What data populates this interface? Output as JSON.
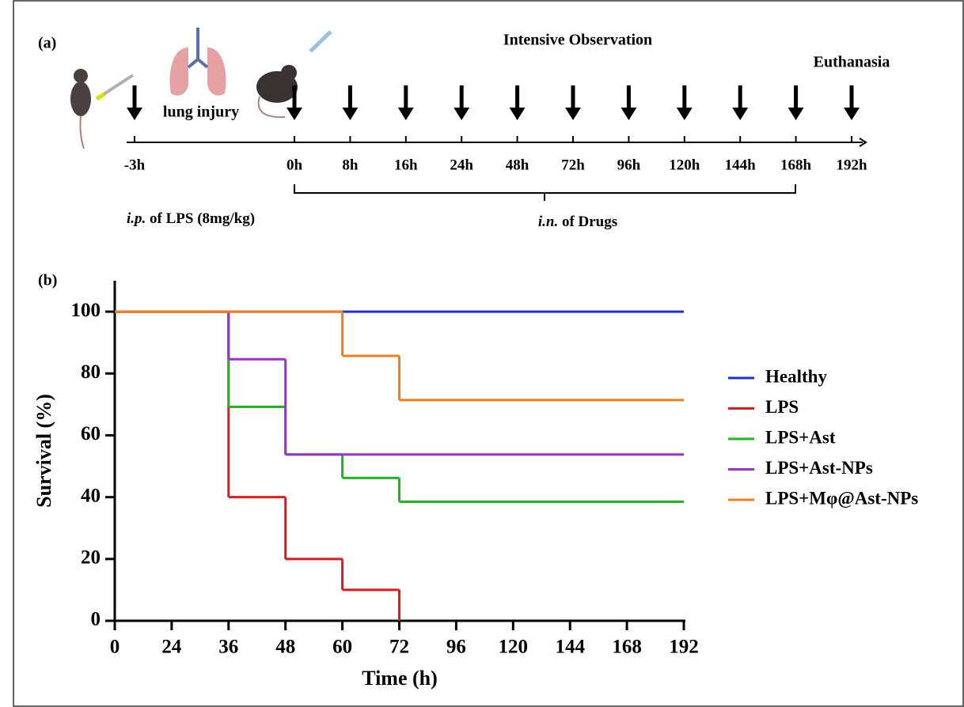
{
  "panel_a": {
    "label": "(a)",
    "header": "Intensive Observation",
    "end_label": "Euthanasia",
    "injury_label": "lung injury",
    "timepoints": [
      "-3h",
      "0h",
      "8h",
      "16h",
      "24h",
      "48h",
      "72h",
      "96h",
      "120h",
      "144h",
      "168h",
      "192h"
    ],
    "ip_prefix": "i.p.",
    "ip_text": "of LPS (8mg/kg)",
    "in_prefix": "i.n.",
    "in_text": "of Drugs"
  },
  "chart_data": {
    "type": "step",
    "panel_label": "(b)",
    "xlabel": "Time (h)",
    "ylabel": "Survival (%)",
    "xlim": [
      0,
      192
    ],
    "xticks": [
      0,
      24,
      36,
      48,
      60,
      72,
      96,
      120,
      144,
      168,
      192
    ],
    "ylim": [
      0,
      110
    ],
    "yticks": [
      0,
      20,
      40,
      60,
      80,
      100
    ],
    "legend": "right",
    "series": [
      {
        "name": "Healthy",
        "color": "#1f2fd6",
        "x": [
          0,
          192
        ],
        "values": [
          100,
          100
        ]
      },
      {
        "name": "LPS",
        "color": "#e01b1b",
        "x": [
          0,
          36,
          48,
          60,
          72
        ],
        "values": [
          100,
          40,
          20,
          10,
          0
        ]
      },
      {
        "name": "LPS+Ast",
        "color": "#22b522",
        "x": [
          0,
          36,
          48,
          60,
          72,
          192
        ],
        "values": [
          100,
          69.2,
          53.8,
          46.2,
          38.5,
          38.5
        ]
      },
      {
        "name": "LPS+Ast-NPs",
        "color": "#9b2fd0",
        "x": [
          0,
          36,
          48,
          192
        ],
        "values": [
          100,
          84.6,
          53.8,
          53.8
        ]
      },
      {
        "name": "LPS+Mφ@Ast-NPs",
        "color": "#f07f1a",
        "x": [
          0,
          60,
          72,
          192
        ],
        "values": [
          100,
          85.7,
          71.4,
          71.4
        ]
      }
    ]
  }
}
